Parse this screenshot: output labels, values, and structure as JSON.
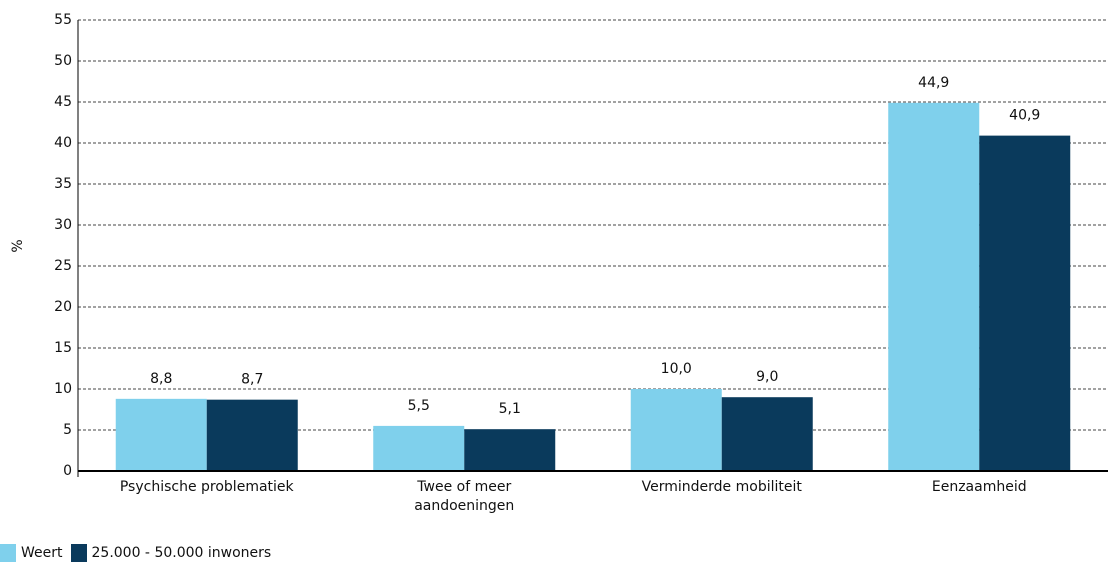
{
  "chart_data": {
    "type": "bar",
    "y_label": "%",
    "categories": [
      "Psychische problematiek",
      "Twee of meer aandoeningen",
      "Verminderde mobiliteit",
      "Eenzaamheid"
    ],
    "series": [
      {
        "name": "Weert",
        "color": "#7fd0ec",
        "values": [
          8.8,
          5.5,
          10.0,
          44.9
        ],
        "value_labels": [
          "8,8",
          "5,5",
          "10,0",
          "44,9"
        ]
      },
      {
        "name": "25.000 - 50.000 inwoners",
        "color": "#0a3a5c",
        "values": [
          8.7,
          5.1,
          9.0,
          40.9
        ],
        "value_labels": [
          "8,7",
          "5,1",
          "9,0",
          "40,9"
        ]
      }
    ],
    "ylim": [
      0,
      55
    ],
    "yticks": [
      0,
      5,
      10,
      15,
      20,
      25,
      30,
      35,
      40,
      45,
      50,
      55
    ],
    "grid": true,
    "legend": "bottom-left"
  }
}
